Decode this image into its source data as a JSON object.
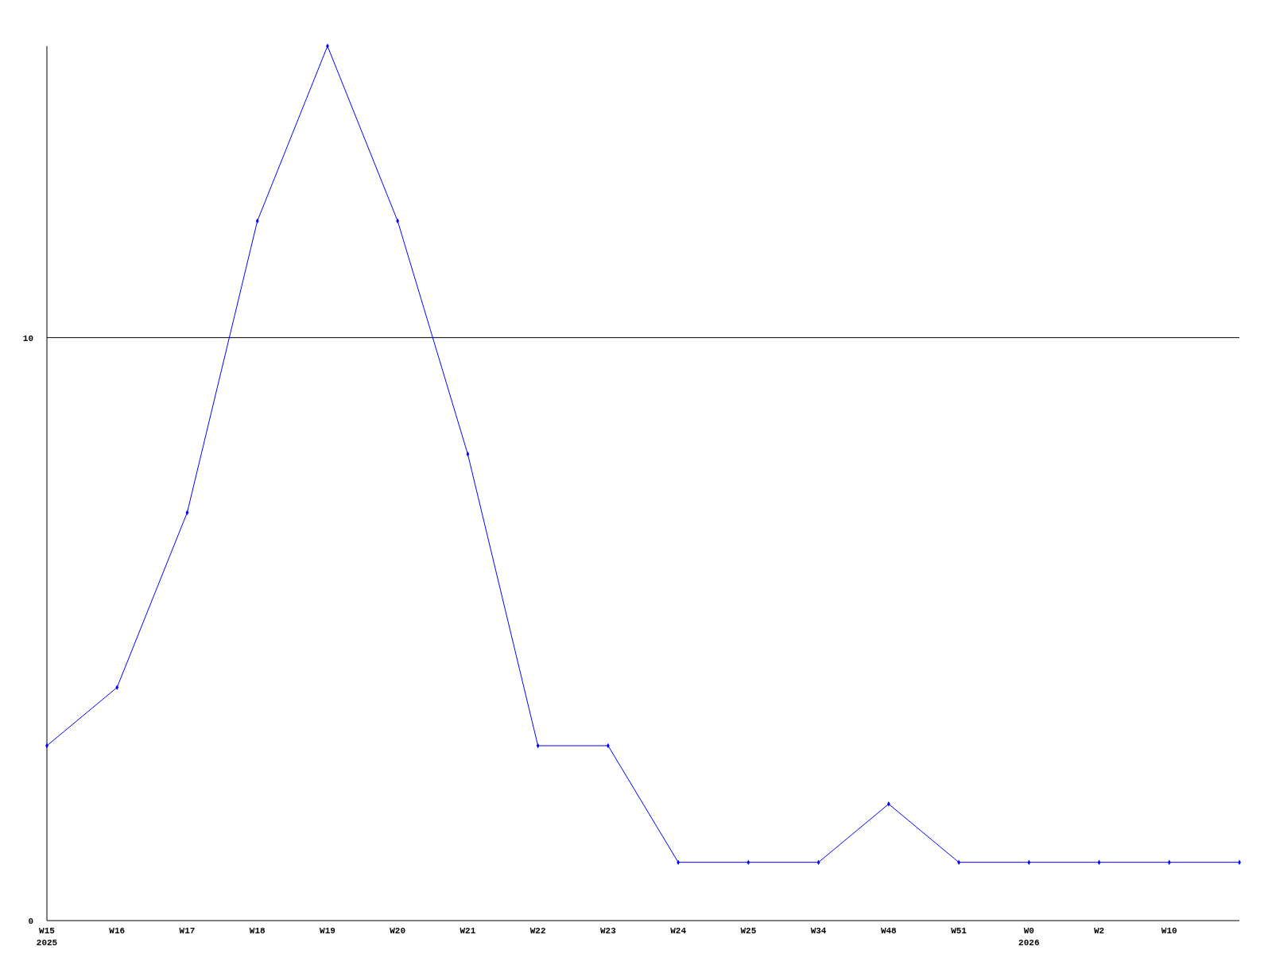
{
  "chart_data": {
    "type": "line",
    "categories": [
      "W15\n2025",
      "W16",
      "W17",
      "W18",
      "W19",
      "W20",
      "W21",
      "W22",
      "W23",
      "W24",
      "W25",
      "W34",
      "W48",
      "W51",
      "W0\n2026",
      "W2",
      "W10",
      null
    ],
    "series": [
      {
        "color": "#0000ff",
        "values": [
          3,
          4,
          7,
          12,
          15,
          12,
          8,
          3,
          3,
          1,
          1,
          1,
          2,
          1,
          1,
          1,
          1,
          1
        ]
      }
    ],
    "ylim": [
      0,
      15
    ],
    "yticks": [
      0,
      10
    ],
    "grid": "y",
    "marker": "diamond"
  }
}
